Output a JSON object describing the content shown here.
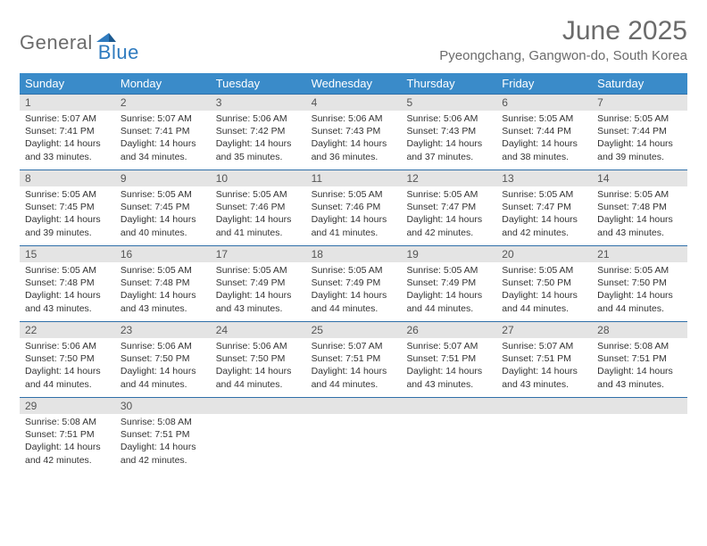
{
  "logo": {
    "general": "General",
    "blue": "Blue"
  },
  "title": "June 2025",
  "location": "Pyeongchang, Gangwon-do, South Korea",
  "colors": {
    "header_bg": "#3a8bc9",
    "header_text": "#ffffff",
    "daynum_bg": "#e4e4e4",
    "week_border": "#2f6fa8",
    "text": "#333333",
    "title_text": "#6b6b6b",
    "logo_blue": "#2f7bbf"
  },
  "dayHeaders": [
    "Sunday",
    "Monday",
    "Tuesday",
    "Wednesday",
    "Thursday",
    "Friday",
    "Saturday"
  ],
  "labels": {
    "sunrise_prefix": "Sunrise: ",
    "sunset_prefix": "Sunset: ",
    "daylight_prefix": "Daylight: ",
    "daylight_hours_word": " hours",
    "daylight_and": "and ",
    "daylight_minutes_word": " minutes."
  },
  "weeks": [
    [
      {
        "num": "1",
        "sunrise": "5:07 AM",
        "sunset": "7:41 PM",
        "dh": "14",
        "dm": "33"
      },
      {
        "num": "2",
        "sunrise": "5:07 AM",
        "sunset": "7:41 PM",
        "dh": "14",
        "dm": "34"
      },
      {
        "num": "3",
        "sunrise": "5:06 AM",
        "sunset": "7:42 PM",
        "dh": "14",
        "dm": "35"
      },
      {
        "num": "4",
        "sunrise": "5:06 AM",
        "sunset": "7:43 PM",
        "dh": "14",
        "dm": "36"
      },
      {
        "num": "5",
        "sunrise": "5:06 AM",
        "sunset": "7:43 PM",
        "dh": "14",
        "dm": "37"
      },
      {
        "num": "6",
        "sunrise": "5:05 AM",
        "sunset": "7:44 PM",
        "dh": "14",
        "dm": "38"
      },
      {
        "num": "7",
        "sunrise": "5:05 AM",
        "sunset": "7:44 PM",
        "dh": "14",
        "dm": "39"
      }
    ],
    [
      {
        "num": "8",
        "sunrise": "5:05 AM",
        "sunset": "7:45 PM",
        "dh": "14",
        "dm": "39"
      },
      {
        "num": "9",
        "sunrise": "5:05 AM",
        "sunset": "7:45 PM",
        "dh": "14",
        "dm": "40"
      },
      {
        "num": "10",
        "sunrise": "5:05 AM",
        "sunset": "7:46 PM",
        "dh": "14",
        "dm": "41"
      },
      {
        "num": "11",
        "sunrise": "5:05 AM",
        "sunset": "7:46 PM",
        "dh": "14",
        "dm": "41"
      },
      {
        "num": "12",
        "sunrise": "5:05 AM",
        "sunset": "7:47 PM",
        "dh": "14",
        "dm": "42"
      },
      {
        "num": "13",
        "sunrise": "5:05 AM",
        "sunset": "7:47 PM",
        "dh": "14",
        "dm": "42"
      },
      {
        "num": "14",
        "sunrise": "5:05 AM",
        "sunset": "7:48 PM",
        "dh": "14",
        "dm": "43"
      }
    ],
    [
      {
        "num": "15",
        "sunrise": "5:05 AM",
        "sunset": "7:48 PM",
        "dh": "14",
        "dm": "43"
      },
      {
        "num": "16",
        "sunrise": "5:05 AM",
        "sunset": "7:48 PM",
        "dh": "14",
        "dm": "43"
      },
      {
        "num": "17",
        "sunrise": "5:05 AM",
        "sunset": "7:49 PM",
        "dh": "14",
        "dm": "43"
      },
      {
        "num": "18",
        "sunrise": "5:05 AM",
        "sunset": "7:49 PM",
        "dh": "14",
        "dm": "44"
      },
      {
        "num": "19",
        "sunrise": "5:05 AM",
        "sunset": "7:49 PM",
        "dh": "14",
        "dm": "44"
      },
      {
        "num": "20",
        "sunrise": "5:05 AM",
        "sunset": "7:50 PM",
        "dh": "14",
        "dm": "44"
      },
      {
        "num": "21",
        "sunrise": "5:05 AM",
        "sunset": "7:50 PM",
        "dh": "14",
        "dm": "44"
      }
    ],
    [
      {
        "num": "22",
        "sunrise": "5:06 AM",
        "sunset": "7:50 PM",
        "dh": "14",
        "dm": "44"
      },
      {
        "num": "23",
        "sunrise": "5:06 AM",
        "sunset": "7:50 PM",
        "dh": "14",
        "dm": "44"
      },
      {
        "num": "24",
        "sunrise": "5:06 AM",
        "sunset": "7:50 PM",
        "dh": "14",
        "dm": "44"
      },
      {
        "num": "25",
        "sunrise": "5:07 AM",
        "sunset": "7:51 PM",
        "dh": "14",
        "dm": "44"
      },
      {
        "num": "26",
        "sunrise": "5:07 AM",
        "sunset": "7:51 PM",
        "dh": "14",
        "dm": "43"
      },
      {
        "num": "27",
        "sunrise": "5:07 AM",
        "sunset": "7:51 PM",
        "dh": "14",
        "dm": "43"
      },
      {
        "num": "28",
        "sunrise": "5:08 AM",
        "sunset": "7:51 PM",
        "dh": "14",
        "dm": "43"
      }
    ],
    [
      {
        "num": "29",
        "sunrise": "5:08 AM",
        "sunset": "7:51 PM",
        "dh": "14",
        "dm": "42"
      },
      {
        "num": "30",
        "sunrise": "5:08 AM",
        "sunset": "7:51 PM",
        "dh": "14",
        "dm": "42"
      },
      {
        "empty": true
      },
      {
        "empty": true
      },
      {
        "empty": true
      },
      {
        "empty": true
      },
      {
        "empty": true
      }
    ]
  ]
}
